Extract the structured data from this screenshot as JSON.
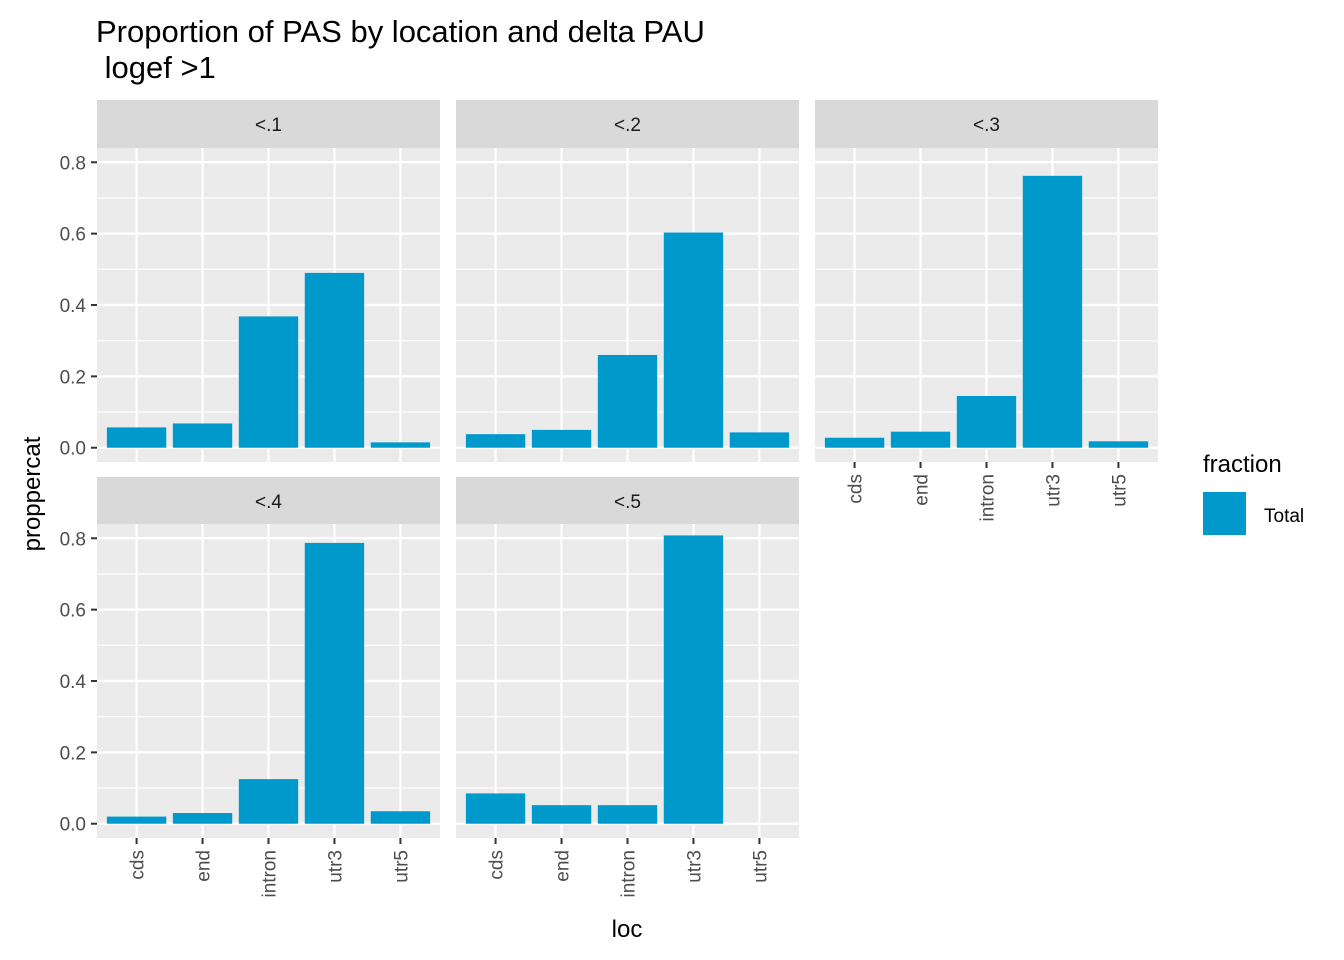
{
  "chart_data": {
    "type": "bar",
    "title_line1": "Proportion of PAS by location and delta PAU",
    "title_line2": " logef >1",
    "xlabel": "loc",
    "ylabel": "proppercat",
    "categories": [
      "cds",
      "end",
      "intron",
      "utr3",
      "utr5"
    ],
    "y_ticks": [
      "0.0",
      "0.2",
      "0.4",
      "0.6",
      "0.8"
    ],
    "y_tick_values": [
      0,
      0.2,
      0.4,
      0.6,
      0.8
    ],
    "ylim": [
      -0.04,
      0.84
    ],
    "legend_title": "fraction",
    "legend_label": "Total",
    "bar_color": "#0099CC",
    "panel_bg": "#EBEBEB",
    "strip_bg": "#D9D9D9",
    "grid_color": "#FFFFFF",
    "facets": [
      {
        "label": "<.1",
        "values": [
          0.057,
          0.068,
          0.368,
          0.49,
          0.015
        ]
      },
      {
        "label": "<.2",
        "values": [
          0.038,
          0.05,
          0.26,
          0.603,
          0.043
        ]
      },
      {
        "label": "<.3",
        "values": [
          0.028,
          0.045,
          0.145,
          0.762,
          0.018
        ]
      },
      {
        "label": "<.4",
        "values": [
          0.02,
          0.03,
          0.125,
          0.787,
          0.035
        ]
      },
      {
        "label": "<.5",
        "values": [
          0.085,
          0.052,
          0.052,
          0.808,
          0.0
        ]
      }
    ]
  }
}
